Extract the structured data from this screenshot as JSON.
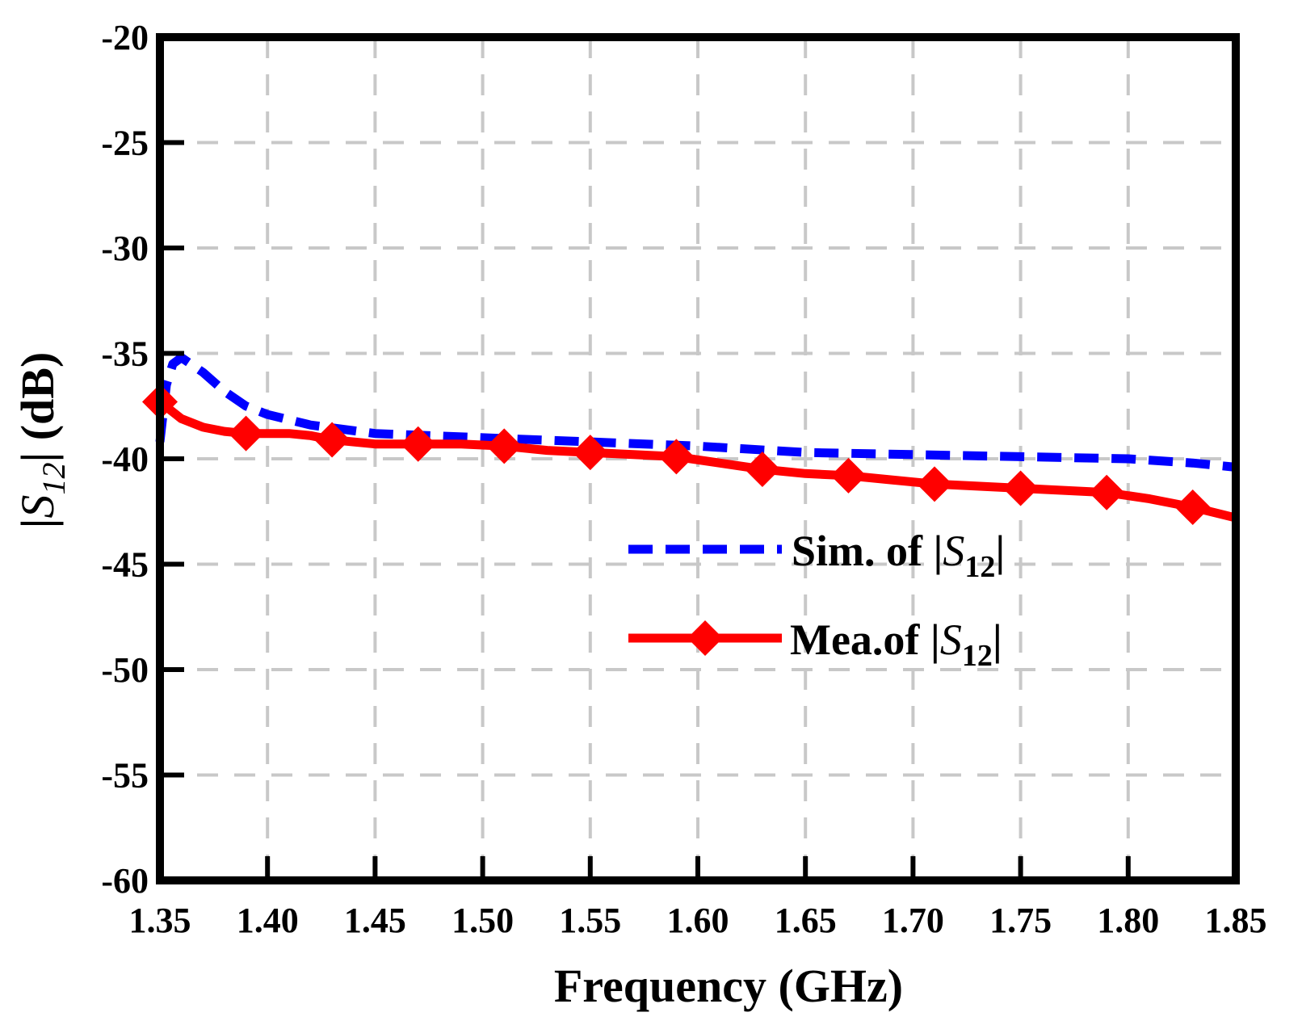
{
  "chart_data": {
    "type": "line",
    "title": "",
    "xlabel": "Frequency (GHz)",
    "ylabel_parts": {
      "pre": "|",
      "sym": "S",
      "sub": "12",
      "post": "| (dB)"
    },
    "xlim": [
      1.35,
      1.85
    ],
    "ylim": [
      -60,
      -20
    ],
    "xticks": [
      1.35,
      1.4,
      1.45,
      1.5,
      1.55,
      1.6,
      1.65,
      1.7,
      1.75,
      1.8,
      1.85
    ],
    "xtick_labels": [
      "1.35",
      "1.40",
      "1.45",
      "1.50",
      "1.55",
      "1.60",
      "1.65",
      "1.70",
      "1.75",
      "1.80",
      "1.85"
    ],
    "yticks": [
      -20,
      -25,
      -30,
      -35,
      -40,
      -45,
      -50,
      -55,
      -60
    ],
    "ytick_labels": [
      "-20",
      "-25",
      "-30",
      "-35",
      "-40",
      "-45",
      "-50",
      "-55",
      "-60"
    ],
    "grid": true,
    "legend_position": "center-right",
    "series": [
      {
        "name": "Sim. of |S12|",
        "legend_parts": {
          "pre": "Sim. of |",
          "sym": "S",
          "sub": "12",
          "post": "|"
        },
        "color": "#0000ff",
        "style": "dashed",
        "marker": "none",
        "x": [
          1.35,
          1.353,
          1.356,
          1.36,
          1.37,
          1.38,
          1.39,
          1.4,
          1.42,
          1.45,
          1.5,
          1.55,
          1.6,
          1.65,
          1.7,
          1.75,
          1.8,
          1.83,
          1.85
        ],
        "y": [
          -39.2,
          -36.5,
          -35.5,
          -35.2,
          -35.9,
          -36.8,
          -37.5,
          -37.9,
          -38.4,
          -38.8,
          -39.0,
          -39.2,
          -39.4,
          -39.7,
          -39.8,
          -39.9,
          -40.0,
          -40.2,
          -40.4
        ]
      },
      {
        "name": "Mea.of |S12|",
        "legend_parts": {
          "pre": "Mea.of |",
          "sym": "S",
          "sub": "12",
          "post": "|"
        },
        "color": "#ff0000",
        "style": "solid",
        "marker": "diamond",
        "x": [
          1.35,
          1.36,
          1.37,
          1.38,
          1.39,
          1.4,
          1.41,
          1.42,
          1.43,
          1.45,
          1.47,
          1.49,
          1.51,
          1.53,
          1.55,
          1.57,
          1.59,
          1.61,
          1.63,
          1.65,
          1.67,
          1.69,
          1.71,
          1.73,
          1.75,
          1.77,
          1.79,
          1.81,
          1.83,
          1.85
        ],
        "y": [
          -37.3,
          -38.1,
          -38.5,
          -38.7,
          -38.8,
          -38.8,
          -38.8,
          -38.9,
          -39.1,
          -39.3,
          -39.3,
          -39.3,
          -39.4,
          -39.6,
          -39.7,
          -39.8,
          -39.9,
          -40.2,
          -40.5,
          -40.7,
          -40.8,
          -41.0,
          -41.2,
          -41.3,
          -41.4,
          -41.5,
          -41.6,
          -41.9,
          -42.3,
          -42.8
        ],
        "marker_x": [
          1.35,
          1.39,
          1.43,
          1.47,
          1.51,
          1.55,
          1.59,
          1.63,
          1.67,
          1.71,
          1.75,
          1.79,
          1.83
        ],
        "marker_y": [
          -37.3,
          -38.8,
          -39.1,
          -39.3,
          -39.4,
          -39.7,
          -39.9,
          -40.5,
          -40.8,
          -41.2,
          -41.4,
          -41.6,
          -42.3
        ]
      }
    ]
  }
}
